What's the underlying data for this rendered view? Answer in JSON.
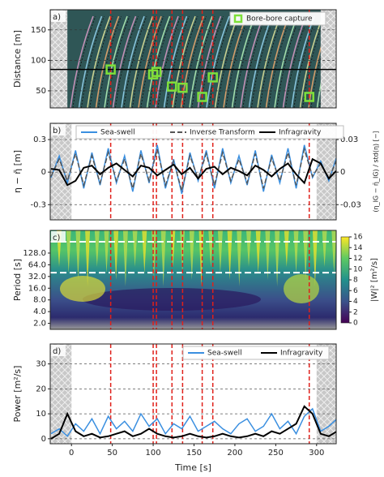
{
  "chart_data": [
    {
      "type": "scatter",
      "panel_label": "a)",
      "ylabel": "Distance [m]",
      "xlim": [
        -26,
        324
      ],
      "ylim": [
        22,
        183
      ],
      "yticks": [
        50,
        100,
        150
      ],
      "grid": true,
      "hline": 85,
      "masked_ranges": [
        [
          -26,
          -5
        ],
        [
          305,
          324
        ]
      ],
      "series": [
        {
          "name": "Bore-bore capture",
          "color": "#7ee03a",
          "x": [
            48,
            100,
            104,
            123,
            136,
            160,
            173,
            291
          ],
          "values": [
            85,
            77,
            81,
            57,
            55,
            40,
            72,
            40
          ]
        }
      ]
    },
    {
      "type": "line",
      "panel_label": "b)",
      "ylabel": "η − η̄ [m]",
      "y2label": "(η_IG − η̄_IG) / std(η) [−]",
      "xlim": [
        -26,
        324
      ],
      "ylim": [
        -0.44,
        0.45
      ],
      "yticks": [
        -0.3,
        0,
        0.3
      ],
      "y2lim": [
        -0.044,
        0.045
      ],
      "y2ticks": [
        -0.03,
        0,
        0.03
      ],
      "grid": true,
      "masked_ranges": [
        [
          -26,
          0
        ],
        [
          300,
          324
        ]
      ],
      "x": [
        -25,
        -15,
        -5,
        5,
        15,
        25,
        35,
        45,
        55,
        65,
        75,
        85,
        95,
        105,
        115,
        125,
        135,
        145,
        155,
        165,
        175,
        185,
        195,
        205,
        215,
        225,
        235,
        245,
        255,
        265,
        275,
        285,
        295,
        305,
        315,
        325
      ],
      "series": [
        {
          "name": "Sea-swell",
          "color": "#3a8fe0",
          "linestyle": "solid",
          "values": [
            -0.05,
            0.15,
            -0.1,
            0.2,
            -0.15,
            0.18,
            -0.12,
            0.22,
            -0.1,
            0.15,
            -0.18,
            0.2,
            -0.1,
            0.25,
            -0.15,
            0.12,
            -0.2,
            0.18,
            -0.08,
            0.2,
            -0.15,
            0.22,
            -0.1,
            0.15,
            -0.12,
            0.2,
            -0.18,
            0.16,
            -0.1,
            0.22,
            -0.15,
            0.25,
            -0.05,
            0.1,
            -0.08,
            0.15
          ]
        },
        {
          "name": "Inverse Transform",
          "color": "#555555",
          "linestyle": "dashed",
          "values": [
            -0.04,
            0.12,
            -0.08,
            0.17,
            -0.12,
            0.15,
            -0.1,
            0.18,
            -0.08,
            0.12,
            -0.15,
            0.17,
            -0.08,
            0.21,
            -0.12,
            0.1,
            -0.17,
            0.15,
            -0.06,
            0.17,
            -0.12,
            0.18,
            -0.08,
            0.12,
            -0.1,
            0.17,
            -0.15,
            0.13,
            -0.08,
            0.18,
            -0.12,
            0.21,
            -0.04,
            0.08,
            -0.06,
            0.12
          ]
        },
        {
          "name": "Infragravity",
          "color": "#000000",
          "linestyle": "solid",
          "axis": "y2",
          "values": [
            0.003,
            0.002,
            -0.012,
            -0.008,
            0.004,
            0.006,
            -0.002,
            0.004,
            0.008,
            0.002,
            -0.004,
            0.006,
            0.004,
            -0.003,
            0.002,
            0.007,
            -0.002,
            0.004,
            -0.006,
            0.003,
            0.005,
            -0.002,
            0.004,
            0.001,
            -0.003,
            0.006,
            0.002,
            -0.004,
            0.003,
            0.008,
            -0.002,
            -0.01,
            0.012,
            0.008,
            -0.006,
            0.002
          ]
        }
      ]
    },
    {
      "type": "heatmap",
      "panel_label": "c)",
      "ylabel": "Period [s]",
      "xlim": [
        -26,
        324
      ],
      "ylim": [
        1.4,
        490
      ],
      "ylog": true,
      "dashed_levels": [
        40,
        250
      ],
      "yticks": [
        {
          "value": 2,
          "label": "2.0"
        },
        {
          "value": 4,
          "label": "4.0"
        },
        {
          "value": 8,
          "label": "8.0"
        },
        {
          "value": 16,
          "label": "16.0"
        },
        {
          "value": 32,
          "label": "32.0"
        },
        {
          "value": 64,
          "label": "64.0"
        },
        {
          "value": 128,
          "label": "128.0"
        }
      ],
      "colorbar": {
        "label": "|W|² [m²/s]",
        "lim": [
          0,
          16
        ],
        "ticks": [
          0,
          2,
          4,
          6,
          8,
          10,
          12,
          14,
          16
        ]
      }
    },
    {
      "type": "line",
      "panel_label": "d)",
      "ylabel": "Power [m²/s]",
      "xlabel": "Time [s]",
      "xlim": [
        -26,
        324
      ],
      "xticks": [
        0,
        50,
        100,
        150,
        200,
        250,
        300
      ],
      "ylim": [
        -2,
        38
      ],
      "yticks": [
        0,
        10,
        20,
        30
      ],
      "grid": true,
      "masked_ranges": [
        [
          -26,
          0
        ],
        [
          300,
          324
        ]
      ],
      "x": [
        -25,
        -15,
        -5,
        5,
        15,
        25,
        35,
        45,
        55,
        65,
        75,
        85,
        95,
        105,
        115,
        125,
        135,
        145,
        155,
        165,
        175,
        185,
        195,
        205,
        215,
        225,
        235,
        245,
        255,
        265,
        275,
        285,
        295,
        305,
        315,
        325
      ],
      "series": [
        {
          "name": "Sea-swell",
          "color": "#3a8fe0",
          "linestyle": "solid",
          "values": [
            2,
            4,
            1,
            6,
            3,
            8,
            2,
            9,
            4,
            7,
            3,
            10,
            5,
            8,
            2,
            6,
            4,
            9,
            3,
            5,
            7,
            4,
            2,
            6,
            8,
            3,
            5,
            10,
            4,
            7,
            2,
            9,
            12,
            3,
            5,
            8
          ]
        },
        {
          "name": "Infragravity",
          "color": "#000000",
          "linestyle": "solid",
          "values": [
            0,
            2,
            10,
            3,
            1,
            2,
            0.5,
            1,
            2,
            3,
            1,
            2,
            4,
            2,
            1,
            0.5,
            1,
            2,
            1,
            0.5,
            1,
            2,
            1,
            0.5,
            1,
            2,
            1,
            3,
            2,
            4,
            6,
            13,
            10,
            2,
            1,
            3
          ]
        }
      ]
    }
  ]
}
